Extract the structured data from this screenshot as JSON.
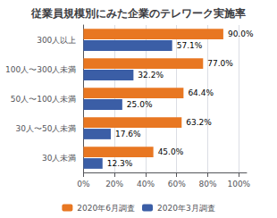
{
  "chart_data": {
    "type": "bar",
    "orientation": "horizontal",
    "title": "従業員規模別にみた企業のテレワーク実施率",
    "categories": [
      "300人以上",
      "100人〜300人未満",
      "50人〜100人未満",
      "30人〜50人未満",
      "30人未満"
    ],
    "series": [
      {
        "name": "2020年6月調査",
        "color": "#E87722",
        "values": [
          90.0,
          77.0,
          64.4,
          63.2,
          45.0
        ],
        "value_labels": [
          "90.0%",
          "77.0%",
          "64.4%",
          "63.2%",
          "45.0%"
        ]
      },
      {
        "name": "2020年3月調査",
        "color": "#3B5EA6",
        "values": [
          57.1,
          32.2,
          25.0,
          17.6,
          12.3
        ],
        "value_labels": [
          "57.1%",
          "32.2%",
          "25.0%",
          "17.6%",
          "12.3%"
        ]
      }
    ],
    "xlim": [
      0,
      105
    ],
    "xticks": [
      {
        "value": 0,
        "label": "0%"
      },
      {
        "value": 20,
        "label": "20%"
      },
      {
        "value": 40,
        "label": "40%"
      },
      {
        "value": 60,
        "label": "60%"
      },
      {
        "value": 80,
        "label": "80%"
      },
      {
        "value": 100,
        "label": "100%"
      }
    ],
    "grid": true,
    "legend": "bottom",
    "data_labels": true
  }
}
